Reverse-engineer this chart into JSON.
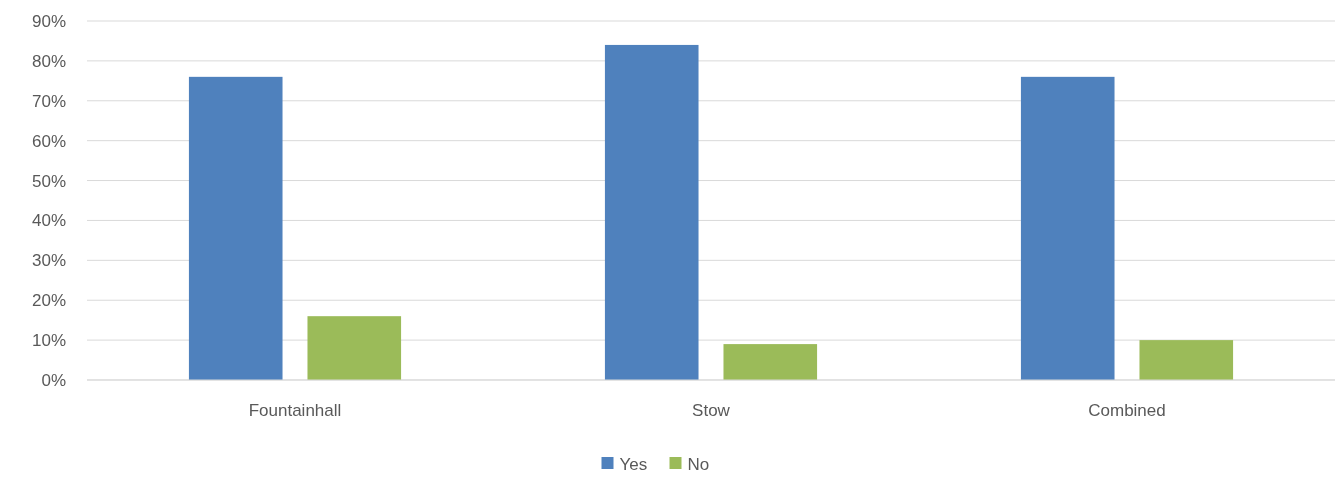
{
  "chart_data": {
    "type": "bar",
    "categories": [
      "Fountainhall",
      "Stow",
      "Combined"
    ],
    "series": [
      {
        "name": "Yes",
        "color": "#4f81bd",
        "values": [
          76,
          84,
          76
        ]
      },
      {
        "name": "No",
        "color": "#9bbb59",
        "values": [
          16,
          9,
          10
        ]
      }
    ],
    "ylim": [
      0,
      90
    ],
    "yticks": [
      {
        "value": 0,
        "label": "0%"
      },
      {
        "value": 10,
        "label": "10%"
      },
      {
        "value": 20,
        "label": "20%"
      },
      {
        "value": 30,
        "label": "30%"
      },
      {
        "value": 40,
        "label": "40%"
      },
      {
        "value": 50,
        "label": "50%"
      },
      {
        "value": 60,
        "label": "60%"
      },
      {
        "value": 70,
        "label": "70%"
      },
      {
        "value": 80,
        "label": "80%"
      },
      {
        "value": 90,
        "label": "90%"
      }
    ],
    "grid": "y",
    "legend": "bottom"
  }
}
